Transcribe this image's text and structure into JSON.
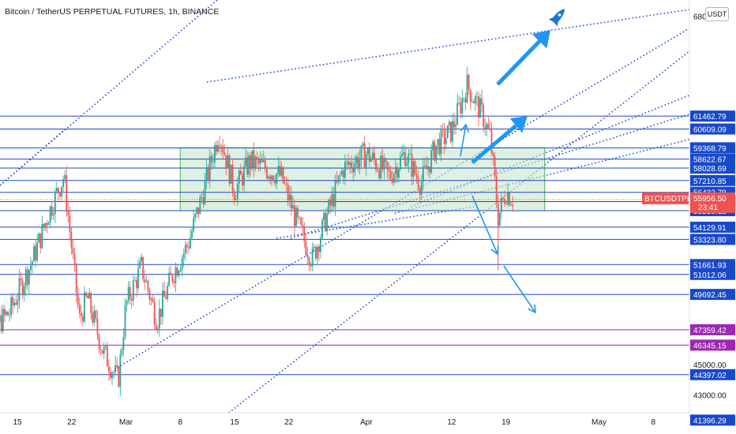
{
  "header": {
    "title": "Bitcoin / TetherUS PERPETUAL FUTURES, 1h, BINANCE",
    "currency_button": "USDT"
  },
  "colors": {
    "level_line": "#1848cc",
    "purple_line": "#9c27b0",
    "trend_dotted": "#1848cc",
    "box_fill": "#c8e6c9",
    "box_border": "#4caf50",
    "arrow": "#2196f3",
    "up_candle": "#26a69a",
    "down_candle": "#ef5350",
    "price_badge": "#ef5350"
  },
  "chart_data": {
    "type": "candlestick",
    "symbol": "BTCUSDTPERP",
    "timeframe": "1h",
    "ylim": [
      41000,
      68000
    ],
    "x_ticks": [
      "15",
      "22",
      "Mar",
      "8",
      "15",
      "22",
      "Apr",
      "12",
      "19",
      "May",
      "8"
    ],
    "y_gray_ticks": [
      "68000.00",
      "45000.00",
      "43000.00"
    ],
    "current_price": {
      "symbol": "BTCUSDTPERP",
      "price": "55956.50",
      "countdown": "23:41"
    },
    "levels_blue": [
      "61462.79",
      "60609.09",
      "59368.79",
      "58622.67",
      "58028.69",
      "57210.85",
      "56432.79",
      "55820.61",
      "55219.12",
      "54129.91",
      "53323.80",
      "51661.93",
      "51012.06",
      "49692.45",
      "44397.02",
      "41396.29"
    ],
    "levels_purple": [
      "47359.42",
      "46345.15"
    ],
    "consolidation_zone": {
      "from_date": "Mar 8",
      "to_date": "Apr 24",
      "low": 55219,
      "high": 59369
    },
    "price_path": [
      [
        "2021-02-10",
        44500
      ],
      [
        "2021-02-12",
        47500
      ],
      [
        "2021-02-14",
        48500
      ],
      [
        "2021-02-17",
        52000
      ],
      [
        "2021-02-19",
        55000
      ],
      [
        "2021-02-21",
        57500
      ],
      [
        "2021-02-23",
        48000
      ],
      [
        "2021-02-24",
        49500
      ],
      [
        "2021-02-26",
        46000
      ],
      [
        "2021-02-28",
        44000
      ],
      [
        "2021-03-01",
        49000
      ],
      [
        "2021-03-03",
        51500
      ],
      [
        "2021-03-05",
        48000
      ],
      [
        "2021-03-07",
        51000
      ],
      [
        "2021-03-09",
        53000
      ],
      [
        "2021-03-11",
        56500
      ],
      [
        "2021-03-13",
        60500
      ],
      [
        "2021-03-15",
        56500
      ],
      [
        "2021-03-17",
        58500
      ],
      [
        "2021-03-19",
        58000
      ],
      [
        "2021-03-21",
        57500
      ],
      [
        "2021-03-23",
        54500
      ],
      [
        "2021-03-25",
        52000
      ],
      [
        "2021-03-27",
        55000
      ],
      [
        "2021-03-29",
        58000
      ],
      [
        "2021-04-01",
        59000
      ],
      [
        "2021-04-04",
        57500
      ],
      [
        "2021-04-06",
        59000
      ],
      [
        "2021-04-08",
        57000
      ],
      [
        "2021-04-10",
        59500
      ],
      [
        "2021-04-12",
        60500
      ],
      [
        "2021-04-14",
        63500
      ],
      [
        "2021-04-16",
        61500
      ],
      [
        "2021-04-17",
        60000
      ],
      [
        "2021-04-18",
        54800
      ],
      [
        "2021-04-19",
        56500
      ],
      [
        "2021-04-20",
        55957
      ]
    ],
    "projections": [
      "bullish breakout toward 68000",
      "bearish drop toward 46345"
    ]
  }
}
